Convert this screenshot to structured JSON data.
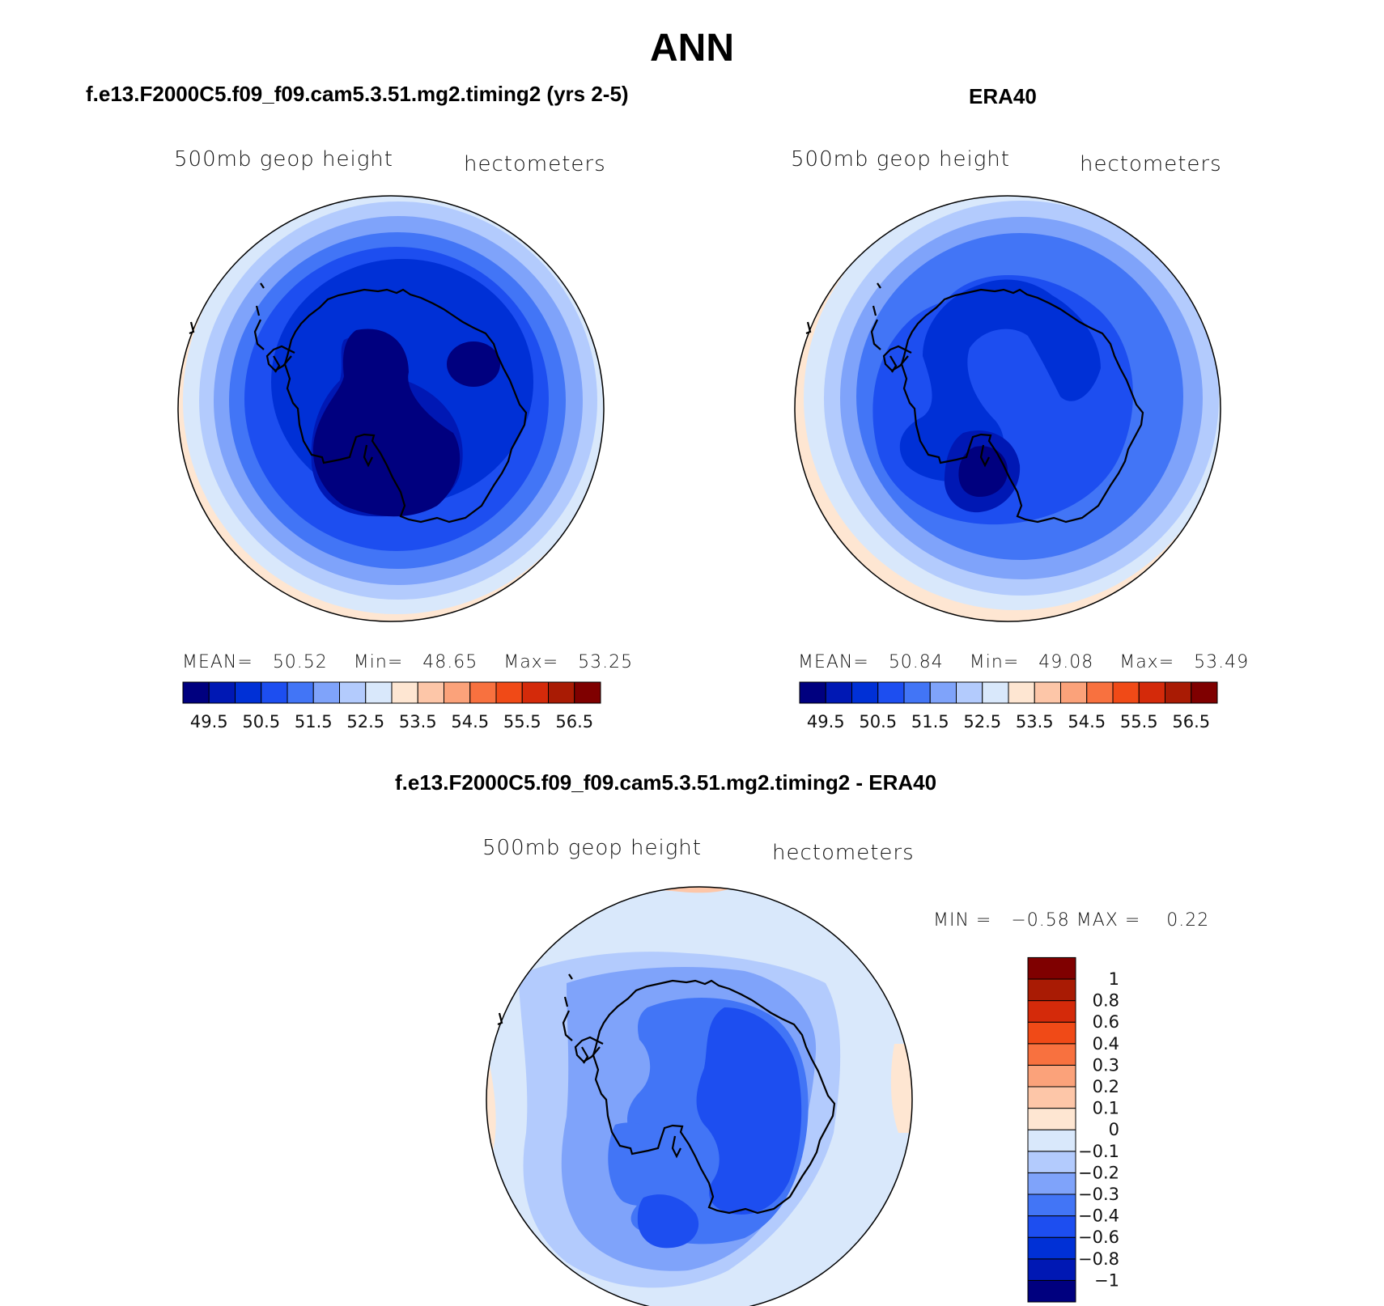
{
  "figure": {
    "season": "ANN"
  },
  "panels": [
    {
      "title": "f.e13.F2000C5.f09_f09.cam5.3.51.mg2.timing2 (yrs 2-5)",
      "left_label": "500mb  geop  height",
      "right_label": "hectometers",
      "stats": {
        "mean_label": "MEAN=",
        "mean": "50.52",
        "min_label": "Min=",
        "min": "48.65",
        "max_label": "Max=",
        "max": "53.25"
      }
    },
    {
      "title": "ERA40",
      "left_label": "500mb  geop  height",
      "right_label": "hectometers",
      "stats": {
        "mean_label": "MEAN=",
        "mean": "50.84",
        "min_label": "Min=",
        "min": "49.08",
        "max_label": "Max=",
        "max": "53.49"
      }
    },
    {
      "title": "f.e13.F2000C5.f09_f09.cam5.3.51.mg2.timing2 - ERA40",
      "left_label": "500mb  geop  height",
      "right_label": "hectometers",
      "stats": {
        "min_label": "MIN =",
        "min": "−0.58",
        "max_label": "MAX =",
        "max": "0.22"
      }
    }
  ],
  "colorbar_main": {
    "colors": [
      "#00007f",
      "#0018b4",
      "#0030d6",
      "#1d4ef0",
      "#4275f6",
      "#7fa3fa",
      "#b3cbfd",
      "#d9e8fb",
      "#fee6d2",
      "#fdc6a8",
      "#fba27a",
      "#f8713f",
      "#f04a17",
      "#d42a0a",
      "#a91b04",
      "#7f0000"
    ],
    "ticks": [
      "49.5",
      "50.5",
      "51.5",
      "52.5",
      "53.5",
      "54.5",
      "55.5",
      "56.5"
    ]
  },
  "colorbar_diff": {
    "colors_bottom_to_top": [
      "#00007f",
      "#0018b4",
      "#0030d6",
      "#1d4ef0",
      "#4275f6",
      "#7fa3fa",
      "#b3cbfd",
      "#d9e8fb",
      "#fee6d2",
      "#fdc6a8",
      "#fba27a",
      "#f8713f",
      "#f04a17",
      "#d42a0a",
      "#a91b04",
      "#7f0000"
    ],
    "ticks_top_to_bottom": [
      "1",
      "0.8",
      "0.6",
      "0.4",
      "0.3",
      "0.2",
      "0.1",
      "0",
      "−0.1",
      "−0.2",
      "−0.3",
      "−0.4",
      "−0.6",
      "−0.8",
      "−1"
    ]
  }
}
